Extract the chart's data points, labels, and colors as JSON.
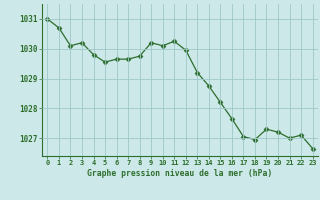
{
  "x": [
    0,
    1,
    2,
    3,
    4,
    5,
    6,
    7,
    8,
    9,
    10,
    11,
    12,
    13,
    14,
    15,
    16,
    17,
    18,
    19,
    20,
    21,
    22,
    23
  ],
  "y": [
    1031.0,
    1030.7,
    1030.1,
    1030.2,
    1029.8,
    1029.55,
    1029.65,
    1029.65,
    1029.75,
    1030.2,
    1030.1,
    1030.25,
    1029.95,
    1029.2,
    1028.75,
    1028.2,
    1027.65,
    1027.05,
    1026.95,
    1027.3,
    1027.2,
    1027.0,
    1027.1,
    1026.65
  ],
  "line_color": "#2d6e2d",
  "marker": "D",
  "marker_size": 2.5,
  "bg_color": "#cce8e8",
  "grid_color": "#9ec8c8",
  "xlabel": "Graphe pression niveau de la mer (hPa)",
  "xlabel_color": "#2d6e2d",
  "tick_color": "#2d6e2d",
  "label_bg": "#3a7a3a",
  "ylim_min": 1026.4,
  "ylim_max": 1031.5,
  "yticks": [
    1027,
    1028,
    1029,
    1030,
    1031
  ],
  "xticks": [
    0,
    1,
    2,
    3,
    4,
    5,
    6,
    7,
    8,
    9,
    10,
    11,
    12,
    13,
    14,
    15,
    16,
    17,
    18,
    19,
    20,
    21,
    22,
    23
  ]
}
